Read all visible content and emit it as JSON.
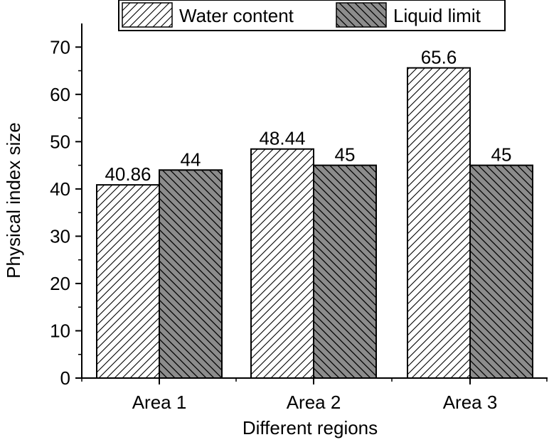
{
  "chart_data": {
    "type": "bar",
    "title": "",
    "xlabel": "Different regions",
    "ylabel": "Physical index size",
    "categories": [
      "Area 1",
      "Area 2",
      "Area 3"
    ],
    "series": [
      {
        "name": "Water content",
        "values": [
          40.86,
          48.44,
          65.6
        ],
        "labels": [
          "40.86",
          "48.44",
          "65.6"
        ],
        "fill": "#ffffff",
        "hatch": "forward-diagonal"
      },
      {
        "name": "Liquid limit",
        "values": [
          44,
          45,
          45
        ],
        "labels": [
          "44",
          "45",
          "45"
        ],
        "fill": "#8c8c8c",
        "hatch": "backward-diagonal"
      }
    ],
    "ylim": [
      0,
      75
    ],
    "yticks": [
      0,
      10,
      20,
      30,
      40,
      50,
      60,
      70
    ],
    "ytick_labels": [
      "0",
      "10",
      "20",
      "30",
      "40",
      "50",
      "60",
      "70"
    ],
    "legend_position": "top",
    "grid": false
  }
}
